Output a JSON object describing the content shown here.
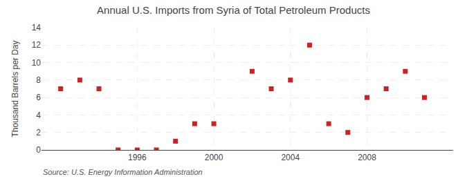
{
  "chart_data": {
    "type": "scatter",
    "title": "Annual U.S. Imports from Syria of Total Petroleum Products",
    "ylabel": "Thousand Barrels per Day",
    "annotations": [
      "Source: U.S. Energy Information Administration"
    ],
    "x": [
      1992,
      1993,
      1994,
      1995,
      1996,
      1997,
      1998,
      1999,
      2000,
      2002,
      2003,
      2004,
      2005,
      2006,
      2007,
      2008,
      2009,
      2010,
      2011
    ],
    "values": [
      7,
      8,
      7,
      0,
      0,
      0,
      1,
      3,
      3,
      9,
      7,
      8,
      12,
      3,
      2,
      6,
      7,
      9,
      6
    ],
    "color": "#cc2222",
    "marker": "square",
    "xlim": [
      1991.0,
      2012.5
    ],
    "xticks": [
      1996,
      2000,
      2004,
      2008
    ],
    "ylim": [
      0,
      14
    ],
    "yticks": [
      0,
      2,
      4,
      6,
      8,
      10,
      12,
      14
    ],
    "grid": true
  }
}
